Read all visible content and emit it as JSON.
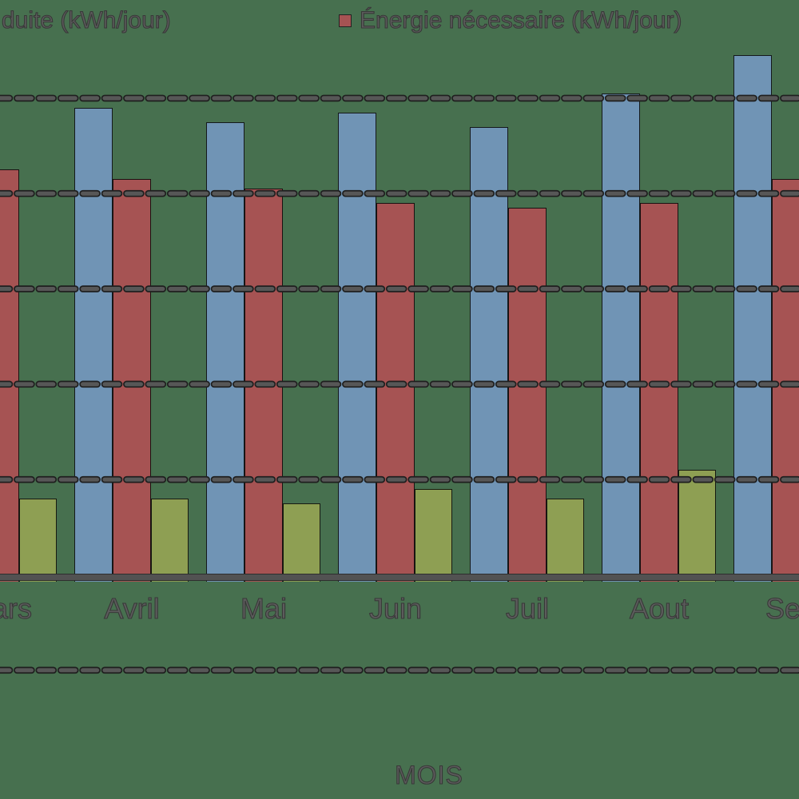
{
  "legend": {
    "items": [
      {
        "label_visible": "duite (kWh/jour)",
        "marker_visible": false,
        "marker_color": "#7094B5"
      },
      {
        "label_visible": "Énergie nécessaire (kWh/jour)",
        "marker_visible": true,
        "marker_color": "#A65353"
      }
    ]
  },
  "axis": {
    "xlabel": "MOIS"
  },
  "colors": {
    "background": "#47704F",
    "grid_dash": "#575757",
    "grid_outline": "#1f1f1f",
    "axis_line": "#525252",
    "text": "#5c5c5c"
  },
  "chart_data": {
    "type": "bar",
    "title": "",
    "xlabel": "MOIS",
    "ylabel": "",
    "categories": [
      "Mars",
      "Avril",
      "Mai",
      "Juin",
      "Juil",
      "Aout",
      "Sep"
    ],
    "series": [
      {
        "name": "duite (kWh/jour)",
        "color": "#7094B5",
        "values": [
          null,
          49,
          47.5,
          48.5,
          47,
          50.5,
          54.5
        ]
      },
      {
        "name": "Énergie nécessaire (kWh/jour)",
        "color": "#A65353",
        "values": [
          42.5,
          41.5,
          40.5,
          39,
          38.5,
          39,
          41.5
        ]
      },
      {
        "name": "",
        "color": "#8E9F53",
        "values": [
          8,
          8,
          7.5,
          9,
          8,
          11,
          null
        ]
      }
    ],
    "ylim": [
      -23.5,
      60.3
    ],
    "gridline_values": [
      50,
      40,
      30,
      20,
      10,
      -10
    ],
    "grid": "horizontal-dashed-over-bars",
    "legend_position": "top",
    "note_clipping": "chart is cropped: left/right edges and y-axis tick labels are outside the frame"
  }
}
